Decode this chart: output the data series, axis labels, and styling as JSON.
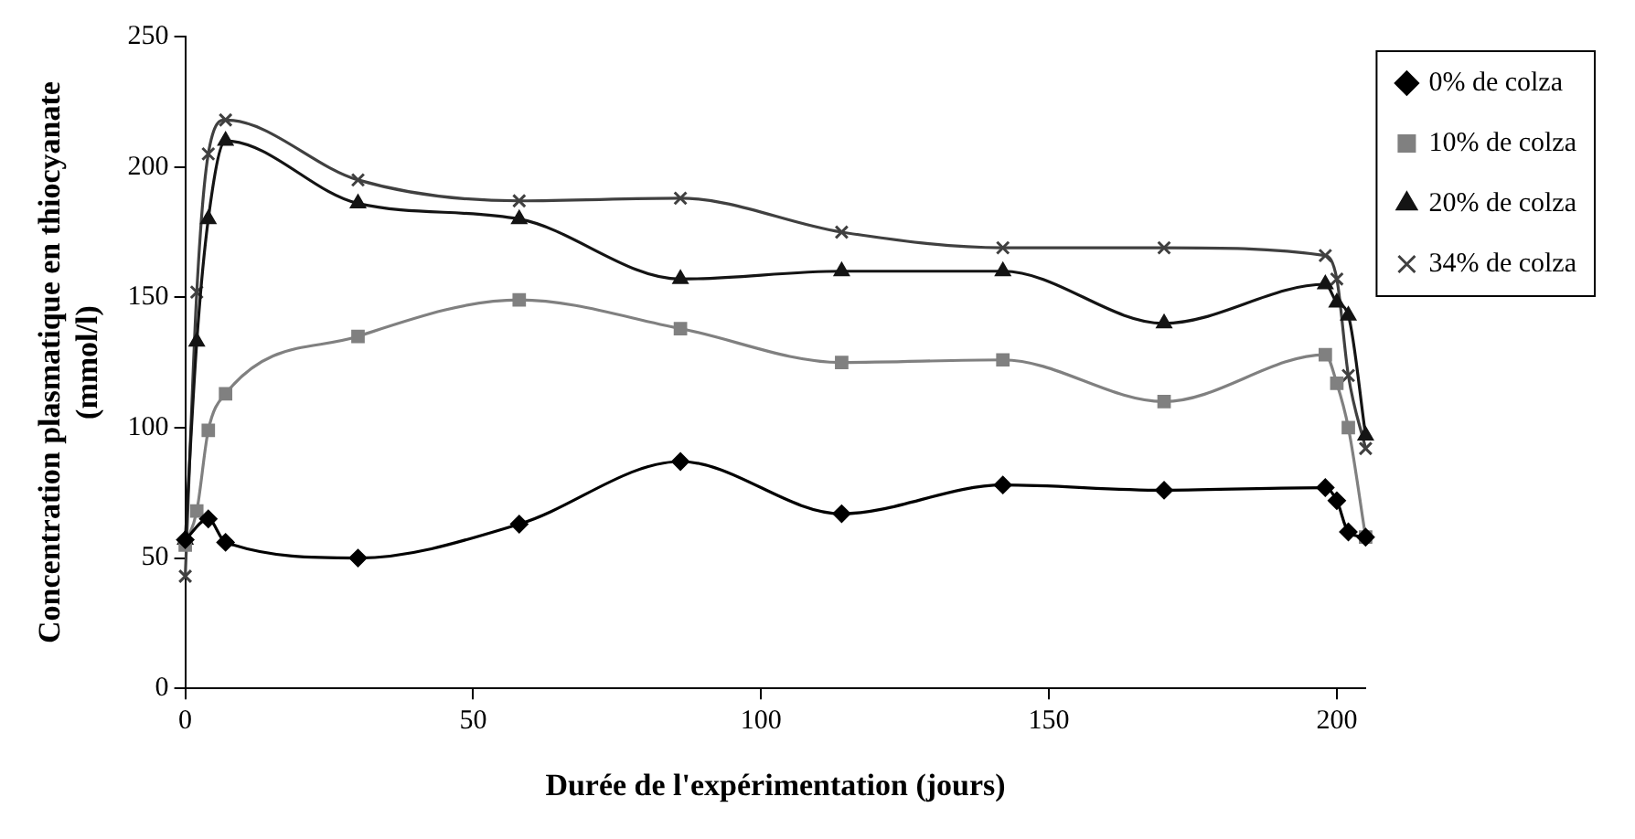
{
  "chart_data": {
    "type": "line",
    "xlabel": "Durée de l'expérimentation (jours)",
    "ylabel": "Concentration plasmatique en thiocyanate\n(mmol/l)",
    "xlim": [
      0,
      205
    ],
    "xticks": [
      0,
      50,
      100,
      150,
      200
    ],
    "ylim": [
      0,
      250
    ],
    "yticks": [
      0,
      50,
      100,
      150,
      200,
      250
    ],
    "grid": false,
    "legend": "top right",
    "line_style": "solid",
    "series": [
      {
        "name": "0% de colza",
        "color": "#000000",
        "marker": "diamond",
        "x": [
          0,
          4,
          7,
          30,
          58,
          86,
          114,
          142,
          170,
          198,
          200,
          202,
          205
        ],
        "values": [
          57,
          65,
          56,
          50,
          63,
          87,
          67,
          78,
          76,
          77,
          72,
          60,
          58
        ]
      },
      {
        "name": "10% de colza",
        "color": "#808080",
        "marker": "square",
        "x": [
          0,
          2,
          4,
          7,
          30,
          58,
          86,
          114,
          142,
          170,
          198,
          200,
          202,
          205
        ],
        "values": [
          55,
          68,
          99,
          113,
          135,
          149,
          138,
          125,
          126,
          110,
          128,
          117,
          100,
          58
        ]
      },
      {
        "name": "20% de colza",
        "color": "#141414",
        "marker": "triangle",
        "x": [
          0,
          2,
          4,
          7,
          30,
          58,
          86,
          114,
          142,
          170,
          198,
          200,
          202,
          205
        ],
        "values": [
          57,
          133,
          180,
          210,
          186,
          180,
          157,
          160,
          160,
          140,
          155,
          148,
          143,
          97
        ]
      },
      {
        "name": "34% de colza",
        "color": "#404040",
        "marker": "cross",
        "x": [
          0,
          2,
          4,
          7,
          30,
          58,
          86,
          114,
          142,
          170,
          198,
          200,
          202,
          205
        ],
        "values": [
          43,
          152,
          205,
          218,
          195,
          187,
          188,
          175,
          169,
          169,
          166,
          157,
          120,
          92
        ]
      }
    ]
  }
}
